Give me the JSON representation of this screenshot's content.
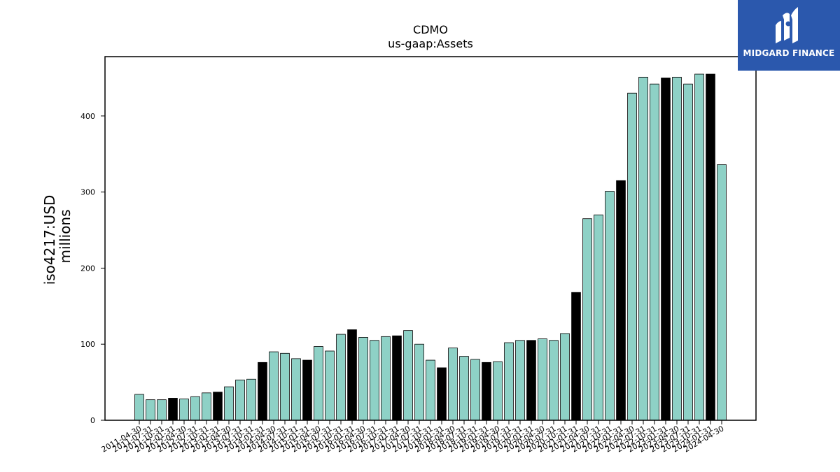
{
  "brand": {
    "name": "MIDGARD FINANCE",
    "bg_color": "#2b58ad",
    "icon": "midgard-m-logo-icon"
  },
  "chart_data": {
    "type": "bar",
    "title": "CDMO",
    "subtitle": "us-gaap:Assets",
    "ylabel": "iso4217:USD",
    "ylabel_unit": "millions",
    "xlabel": "",
    "ylim": [
      0,
      478
    ],
    "yticks": [
      0,
      100,
      200,
      300,
      400
    ],
    "grid": false,
    "colors": {
      "default": "#8ed1c6",
      "highlight": "#000000",
      "edge": "#000000"
    },
    "categories": [
      "2011-04-30",
      "2011-07-31",
      "2011-10-31",
      "2012-01-31",
      "2012-04-30",
      "2012-07-31",
      "2012-10-31",
      "2013-01-31",
      "2013-04-30",
      "2013-07-31",
      "2013-10-31",
      "2014-01-31",
      "2014-04-30",
      "2014-07-31",
      "2014-10-31",
      "2015-01-31",
      "2015-04-30",
      "2015-07-31",
      "2015-10-31",
      "2016-01-31",
      "2016-04-30",
      "2016-07-31",
      "2016-10-31",
      "2017-01-31",
      "2017-04-30",
      "2017-07-31",
      "2017-10-31",
      "2018-01-31",
      "2018-04-30",
      "2018-07-31",
      "2018-10-31",
      "2019-01-31",
      "2019-04-30",
      "2019-07-31",
      "2019-10-31",
      "2020-01-31",
      "2020-04-30",
      "2020-07-31",
      "2020-10-31",
      "2021-01-31",
      "2021-04-30",
      "2021-07-31",
      "2021-10-31",
      "2022-01-31",
      "2022-04-30",
      "2022-07-31",
      "2022-10-31",
      "2023-01-31",
      "2023-04-30",
      "2023-07-31",
      "2023-10-31",
      "2024-01-31",
      "2024-04-30"
    ],
    "values": [
      34,
      27,
      27,
      29,
      28,
      31,
      36,
      37,
      44,
      53,
      54,
      76,
      90,
      88,
      81,
      79,
      97,
      91,
      113,
      119,
      109,
      105,
      110,
      111,
      118,
      100,
      79,
      69,
      95,
      84,
      80,
      76,
      77,
      102,
      105,
      105,
      107,
      105,
      114,
      168,
      265,
      270,
      301,
      315,
      430,
      451,
      442,
      450,
      451,
      442,
      455,
      455,
      336
    ],
    "highlight_indices": [
      3,
      7,
      11,
      15,
      19,
      23,
      27,
      31,
      35,
      39,
      43,
      47,
      51
    ]
  }
}
